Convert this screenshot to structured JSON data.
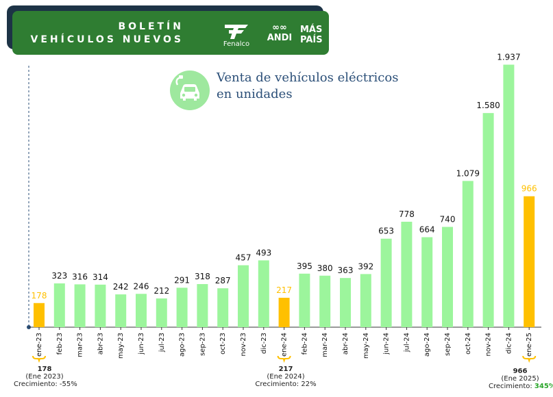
{
  "header": {
    "line1": "BOLETÍN",
    "line2": "VEHÍCULOS NUEVOS",
    "logo_fenalco": "Fenalco",
    "logo_andi": "ANDI",
    "logo_maspais_1": "MÁS",
    "logo_maspais_2": "PAÍS"
  },
  "colors": {
    "bar": "#9cf59c",
    "highlight": "#ffc000",
    "banner": "#2f7d32",
    "title": "#2a4e77",
    "icon": "#9ee89e"
  },
  "chart_data": {
    "type": "bar",
    "title": "Venta de vehículos eléctricos en unidades",
    "title_line1": "Venta de vehículos eléctricos",
    "title_line2": "en unidades",
    "categories": [
      "ene-23",
      "feb-23",
      "mar-23",
      "abr-23",
      "may-23",
      "jun-23",
      "jul-23",
      "ago-23",
      "sep-23",
      "oct-23",
      "nov-23",
      "dic-23",
      "ene-24",
      "feb-24",
      "mar-24",
      "abr-24",
      "may-24",
      "jun-24",
      "jul-24",
      "ago-24",
      "sep-24",
      "oct-24",
      "nov-24",
      "dic-24",
      "ene-25"
    ],
    "values": [
      178,
      323,
      316,
      314,
      242,
      246,
      212,
      291,
      318,
      287,
      457,
      493,
      217,
      395,
      380,
      363,
      392,
      653,
      778,
      664,
      740,
      1079,
      1580,
      1937,
      966
    ],
    "labels": [
      "178",
      "323",
      "316",
      "314",
      "242",
      "246",
      "212",
      "291",
      "318",
      "287",
      "457",
      "493",
      "217",
      "395",
      "380",
      "363",
      "392",
      "653",
      "778",
      "664",
      "740",
      "1.079",
      "1.580",
      "1.937",
      "966"
    ],
    "highlighted": [
      "ene-23",
      "ene-24",
      "ene-25"
    ],
    "ylim": [
      0,
      2000
    ],
    "grid": false,
    "xlabel": "",
    "ylabel": ""
  },
  "annotations": [
    {
      "value": "178",
      "period": "(Ene 2023)",
      "growth_label": "Crecimiento:",
      "growth": "-55%"
    },
    {
      "value": "217",
      "period": "(Ene 2024)",
      "growth_label": "Crecimiento:",
      "growth": "22%"
    },
    {
      "value": "966",
      "period": "(Ene 2025)",
      "growth_label": "Crecimiento:",
      "growth": "345%"
    }
  ]
}
